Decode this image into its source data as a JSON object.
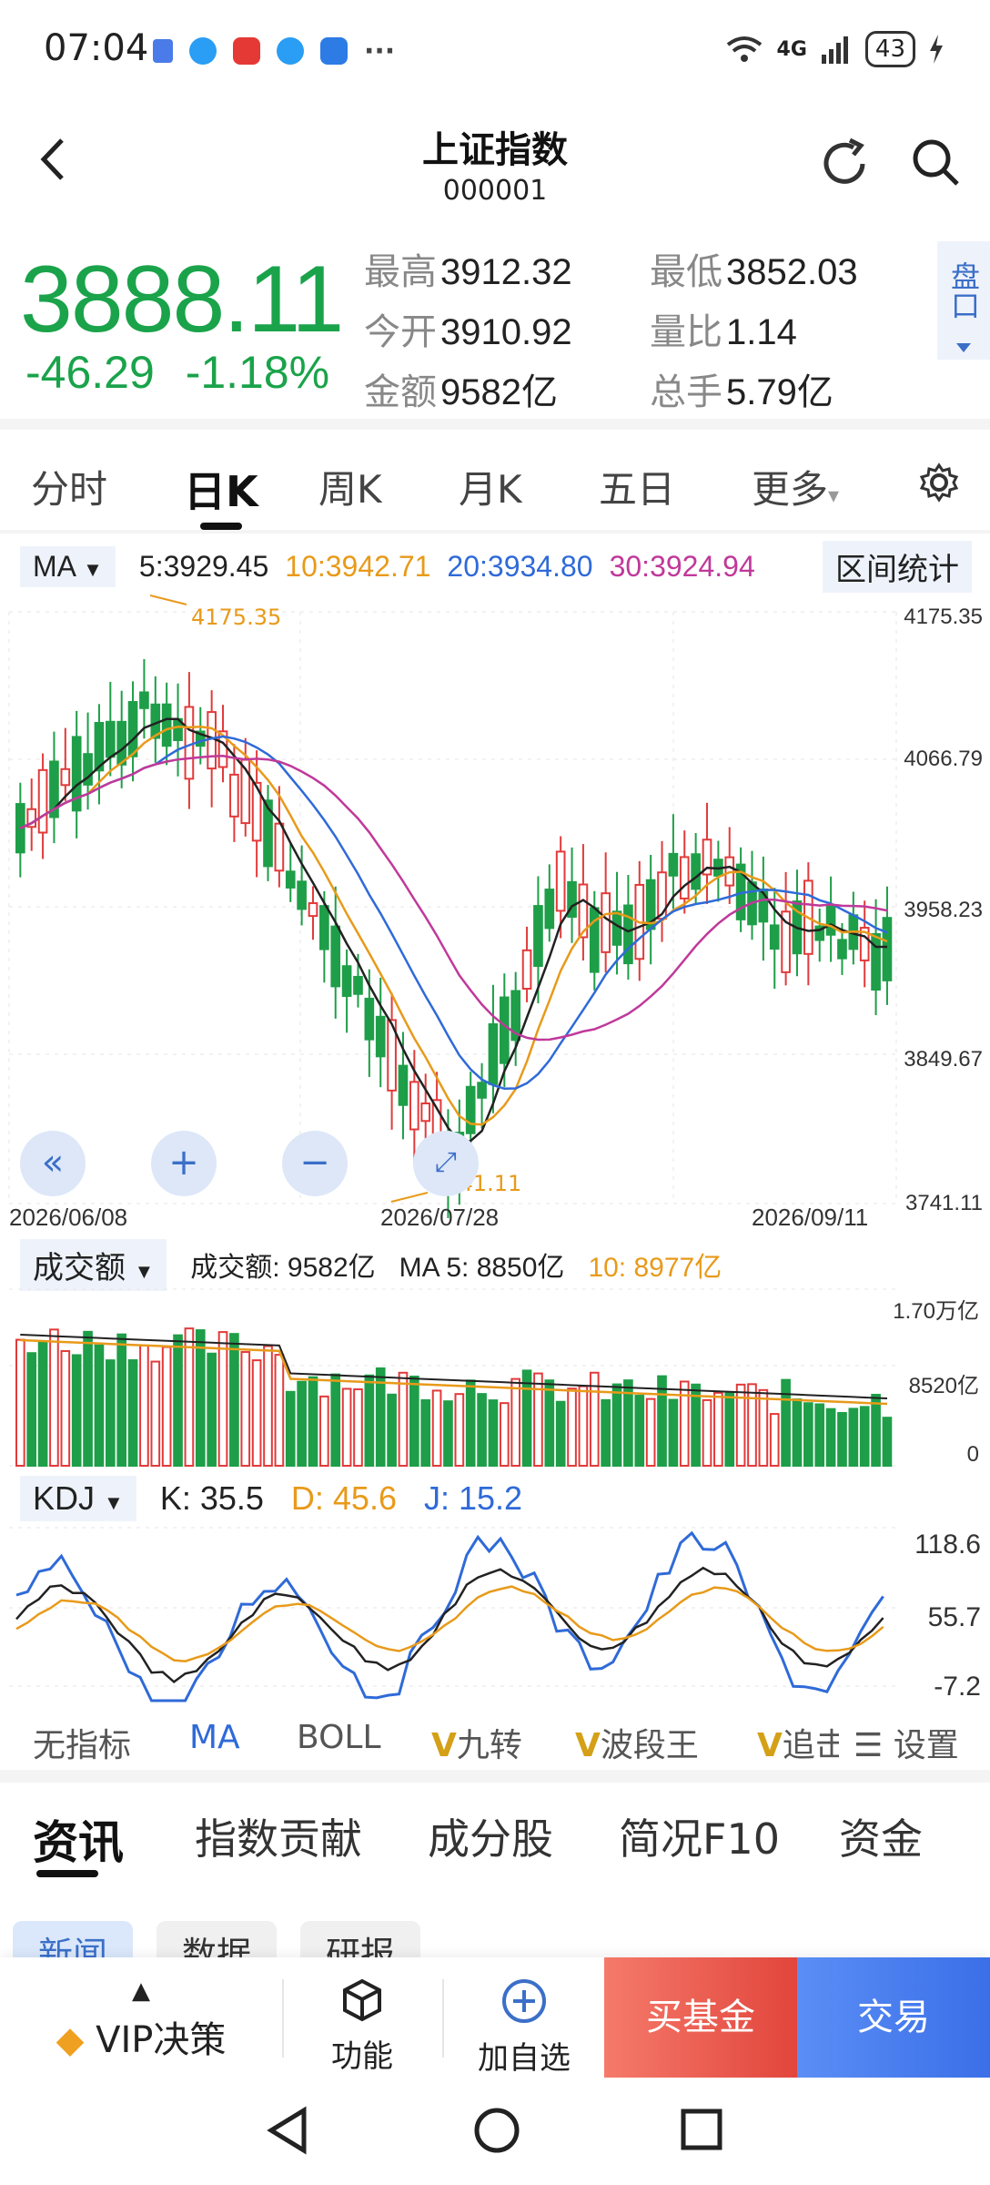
{
  "status_bar": {
    "time": "07:04",
    "network": "4G",
    "battery": "43",
    "more": "···"
  },
  "header": {
    "title": "上证指数",
    "code": "000001"
  },
  "quote": {
    "price": "3888.11",
    "change": "-46.29",
    "change_pct": "-1.18%",
    "color": "#1aa34a",
    "stats": [
      {
        "label": "最高",
        "value": "3912.32"
      },
      {
        "label": "最低",
        "value": "3852.03"
      },
      {
        "label": "今开",
        "value": "3910.92"
      },
      {
        "label": "量比",
        "value": "1.14"
      },
      {
        "label": "金额",
        "value": "9582亿"
      },
      {
        "label": "总手",
        "value": "5.79亿"
      }
    ],
    "pankou": "盘口"
  },
  "period_tabs": [
    "分时",
    "日K",
    "周K",
    "月K",
    "五日",
    "更多"
  ],
  "ma_bar": {
    "select": "MA",
    "ma5": "5:3929.45",
    "ma10": "10:3942.71",
    "ma20": "20:3934.80",
    "ma30": "30:3924.94",
    "range_button": "区间统计",
    "colors": {
      "ma5": "#222222",
      "ma10": "#e89a1a",
      "ma20": "#2f6ad8",
      "ma30": "#c0399a"
    }
  },
  "chart_data": [
    {
      "type": "candlestick",
      "y_ticks": [
        "4175.35",
        "4066.79",
        "3958.23",
        "3849.67",
        "3741.11"
      ],
      "ylim": [
        3741.11,
        4175.35
      ],
      "x_labels": [
        "2026/06/08",
        "2026/07/28",
        "2026/09/11"
      ],
      "annotations": {
        "high": "4175.35",
        "low": "3741.11"
      },
      "colors": {
        "up": "#e23a3a",
        "down": "#1e9e48"
      }
    },
    {
      "type": "bar",
      "title": "成交额",
      "y_ticks": [
        "1.70万亿",
        "8520亿",
        "0"
      ],
      "legend": {
        "amount": "成交额: 9582亿",
        "ma5": "MA 5: 8850亿",
        "ma10": "10: 8977亿"
      }
    },
    {
      "type": "line",
      "title": "KDJ",
      "y_ticks": [
        "118.6",
        "55.7",
        "-7.2"
      ],
      "legend": {
        "k": "K: 35.5",
        "d": "D: 45.6",
        "j": "J: 15.2"
      },
      "colors": {
        "k": "#222222",
        "d": "#e89a1a",
        "j": "#2f6ad8"
      }
    }
  ],
  "indicator_tabs": [
    "无指标",
    "MA",
    "BOLL",
    "九转",
    "波段王",
    "追击",
    "设置"
  ],
  "news_tabs": [
    "资讯",
    "指数贡献",
    "成分股",
    "简况F10",
    "资金"
  ],
  "news_subtabs": [
    "新闻",
    "数据",
    "研报"
  ],
  "bottom_bar": {
    "vip": "VIP决策",
    "function": "功能",
    "add_watch": "加自选",
    "buy_fund": "买基金",
    "trade": "交易"
  }
}
